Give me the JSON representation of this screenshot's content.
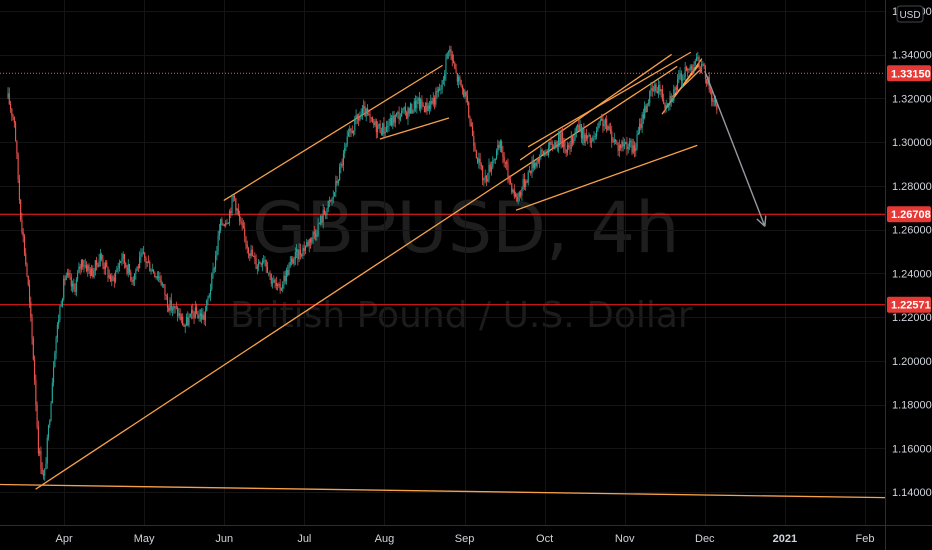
{
  "chart_data": {
    "type": "candlestick",
    "watermark": {
      "symbol": "GBPUSD, 4h",
      "name": "British Pound / U.S. Dollar"
    },
    "currency": "USD",
    "ylim": [
      1.125,
      1.365
    ],
    "y_ticks": [
      "1.36000",
      "1.34000",
      "1.32000",
      "1.30000",
      "1.28000",
      "1.26000",
      "1.24000",
      "1.22000",
      "1.20000",
      "1.18000",
      "1.16000",
      "1.14000"
    ],
    "x_ticks": [
      {
        "label": "Apr",
        "t": 0.7
      },
      {
        "label": "May",
        "t": 1.7
      },
      {
        "label": "Jun",
        "t": 2.7
      },
      {
        "label": "Jul",
        "t": 3.7
      },
      {
        "label": "Aug",
        "t": 4.7
      },
      {
        "label": "Sep",
        "t": 5.7
      },
      {
        "label": "Oct",
        "t": 6.7
      },
      {
        "label": "Nov",
        "t": 7.7
      },
      {
        "label": "Dec",
        "t": 8.7
      },
      {
        "label": "2021",
        "t": 9.7,
        "bold": true
      },
      {
        "label": "Feb",
        "t": 10.7
      }
    ],
    "xlim": [
      -0.1,
      10.95
    ],
    "price_path": [
      [
        0.0,
        1.32
      ],
      [
        0.08,
        1.31
      ],
      [
        0.15,
        1.27
      ],
      [
        0.25,
        1.235
      ],
      [
        0.32,
        1.2
      ],
      [
        0.38,
        1.16
      ],
      [
        0.45,
        1.145
      ],
      [
        0.52,
        1.175
      ],
      [
        0.58,
        1.205
      ],
      [
        0.65,
        1.225
      ],
      [
        0.72,
        1.24
      ],
      [
        0.82,
        1.232
      ],
      [
        0.92,
        1.246
      ],
      [
        1.05,
        1.24
      ],
      [
        1.15,
        1.248
      ],
      [
        1.3,
        1.236
      ],
      [
        1.42,
        1.248
      ],
      [
        1.55,
        1.238
      ],
      [
        1.68,
        1.248
      ],
      [
        1.8,
        1.242
      ],
      [
        1.9,
        1.238
      ],
      [
        2.0,
        1.226
      ],
      [
        2.12,
        1.222
      ],
      [
        2.2,
        1.216
      ],
      [
        2.32,
        1.222
      ],
      [
        2.45,
        1.22
      ],
      [
        2.55,
        1.238
      ],
      [
        2.65,
        1.262
      ],
      [
        2.75,
        1.266
      ],
      [
        2.82,
        1.276
      ],
      [
        2.9,
        1.262
      ],
      [
        3.0,
        1.252
      ],
      [
        3.1,
        1.244
      ],
      [
        3.2,
        1.248
      ],
      [
        3.28,
        1.238
      ],
      [
        3.38,
        1.232
      ],
      [
        3.45,
        1.238
      ],
      [
        3.55,
        1.246
      ],
      [
        3.7,
        1.252
      ],
      [
        3.85,
        1.26
      ],
      [
        3.95,
        1.268
      ],
      [
        4.05,
        1.274
      ],
      [
        4.15,
        1.288
      ],
      [
        4.25,
        1.302
      ],
      [
        4.35,
        1.31
      ],
      [
        4.45,
        1.314
      ],
      [
        4.55,
        1.308
      ],
      [
        4.7,
        1.306
      ],
      [
        4.85,
        1.312
      ],
      [
        5.0,
        1.314
      ],
      [
        5.1,
        1.318
      ],
      [
        5.22,
        1.316
      ],
      [
        5.33,
        1.32
      ],
      [
        5.42,
        1.326
      ],
      [
        5.5,
        1.344
      ],
      [
        5.6,
        1.33
      ],
      [
        5.7,
        1.322
      ],
      [
        5.8,
        1.304
      ],
      [
        5.88,
        1.29
      ],
      [
        5.95,
        1.282
      ],
      [
        6.05,
        1.292
      ],
      [
        6.15,
        1.298
      ],
      [
        6.25,
        1.284
      ],
      [
        6.35,
        1.274
      ],
      [
        6.45,
        1.282
      ],
      [
        6.55,
        1.29
      ],
      [
        6.65,
        1.294
      ],
      [
        6.78,
        1.298
      ],
      [
        6.9,
        1.302
      ],
      [
        7.0,
        1.296
      ],
      [
        7.1,
        1.308
      ],
      [
        7.2,
        1.302
      ],
      [
        7.3,
        1.3
      ],
      [
        7.42,
        1.31
      ],
      [
        7.52,
        1.304
      ],
      [
        7.62,
        1.298
      ],
      [
        7.72,
        1.3
      ],
      [
        7.82,
        1.296
      ],
      [
        7.92,
        1.312
      ],
      [
        8.02,
        1.322
      ],
      [
        8.12,
        1.326
      ],
      [
        8.2,
        1.318
      ],
      [
        8.3,
        1.322
      ],
      [
        8.4,
        1.33
      ],
      [
        8.5,
        1.333
      ],
      [
        8.58,
        1.338
      ],
      [
        8.66,
        1.334
      ],
      [
        8.72,
        1.33
      ],
      [
        8.78,
        1.322
      ],
      [
        8.85,
        1.314
      ]
    ],
    "price_lines": [
      {
        "value": 1.3315,
        "label": "1.33150",
        "color": "#f05c5c",
        "style": "dotted"
      },
      {
        "value": 1.26708,
        "label": "1.26708",
        "color": "#ff1f1f",
        "style": "solid"
      },
      {
        "value": 1.22571,
        "label": "1.22571",
        "color": "#ff1f1f",
        "style": "solid"
      }
    ],
    "trendlines": [
      {
        "from": [
          -0.1,
          1.1435
        ],
        "to": [
          10.95,
          1.1375
        ],
        "color": "#f7a04a"
      },
      {
        "from": [
          0.35,
          1.1415
        ],
        "to": [
          8.35,
          1.3345
        ],
        "color": "#f7a04a"
      },
      {
        "from": [
          2.7,
          1.2735
        ],
        "to": [
          5.42,
          1.335
        ],
        "color": "#f7a04a"
      },
      {
        "from": [
          4.65,
          1.3015
        ],
        "to": [
          5.5,
          1.311
        ],
        "color": "#f7a04a"
      },
      {
        "from": [
          6.35,
          1.269
        ],
        "to": [
          8.6,
          1.2985
        ],
        "color": "#f7a04a"
      },
      {
        "from": [
          6.4,
          1.292
        ],
        "to": [
          8.28,
          1.34
        ],
        "color": "#f7a04a"
      },
      {
        "from": [
          6.5,
          1.298
        ],
        "to": [
          8.52,
          1.341
        ],
        "color": "#f7a04a"
      },
      {
        "from": [
          8.17,
          1.313
        ],
        "to": [
          8.66,
          1.338
        ],
        "color": "#f7a04a"
      },
      {
        "from": [
          8.22,
          1.316
        ],
        "to": [
          8.62,
          1.335
        ],
        "color": "#f7a04a"
      },
      {
        "from": [
          8.3,
          1.321
        ],
        "to": [
          8.64,
          1.333
        ],
        "color": "#f7a04a"
      }
    ],
    "projection": {
      "from": [
        8.7,
        1.3325
      ],
      "to": [
        9.45,
        1.2615
      ],
      "color": "#9598a1"
    }
  }
}
